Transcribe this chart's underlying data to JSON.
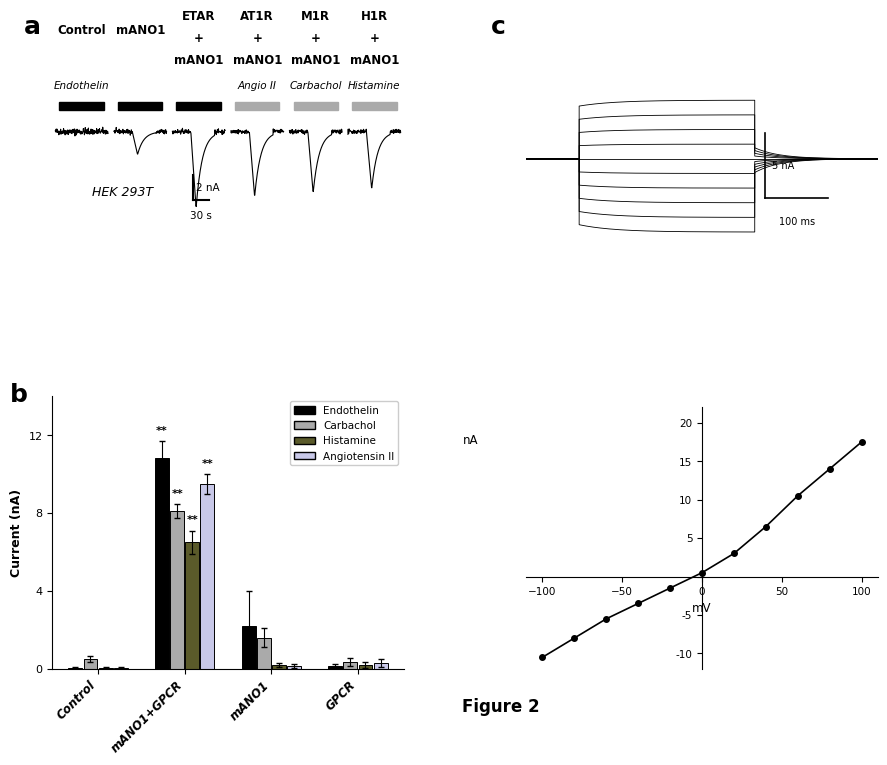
{
  "panel_a": {
    "columns": [
      {
        "label": "Control",
        "subtitle": "Endothelin",
        "bar_color": "black",
        "trace_depth": 0.05,
        "has_dip": false
      },
      {
        "label": "mANO1",
        "subtitle": "",
        "bar_color": "black",
        "trace_depth": 0.3,
        "has_dip": true
      },
      {
        "label": "ETAR\n+\nmANO1",
        "subtitle": "",
        "bar_color": "black",
        "trace_depth": 1.0,
        "has_dip": true
      },
      {
        "label": "AT1R\n+\nmANO1",
        "subtitle": "Angio II",
        "bar_color": "#aaaaaa",
        "trace_depth": 0.85,
        "has_dip": true
      },
      {
        "label": "M1R\n+\nmANO1",
        "subtitle": "Carbachol",
        "bar_color": "#aaaaaa",
        "trace_depth": 0.8,
        "has_dip": true
      },
      {
        "label": "H1R\n+\nmANO1",
        "subtitle": "Histamine",
        "bar_color": "#aaaaaa",
        "trace_depth": 0.75,
        "has_dip": true
      }
    ],
    "scalebar_label_y": "2 nA",
    "scalebar_label_x": "30 s",
    "hek_label": "HEK 293T"
  },
  "panel_b": {
    "groups": [
      "Control",
      "mANO1+GPCR",
      "mANO1",
      "GPCR"
    ],
    "series": [
      {
        "name": "Endothelin",
        "color": "#000000",
        "values": [
          0.05,
          10.8,
          2.2,
          0.15
        ],
        "errors": [
          0.05,
          0.9,
          1.8,
          0.1
        ]
      },
      {
        "name": "Carbachol",
        "color": "#aaaaaa",
        "values": [
          0.5,
          8.1,
          1.6,
          0.35
        ],
        "errors": [
          0.15,
          0.35,
          0.5,
          0.2
        ]
      },
      {
        "name": "Histamine",
        "color": "#5a5a2a",
        "values": [
          0.05,
          6.5,
          0.2,
          0.2
        ],
        "errors": [
          0.05,
          0.6,
          0.1,
          0.15
        ]
      },
      {
        "name": "Angiotensin II",
        "color": "#c8c8e8",
        "values": [
          0.05,
          9.5,
          0.15,
          0.3
        ],
        "errors": [
          0.05,
          0.5,
          0.1,
          0.2
        ]
      }
    ],
    "ylabel": "Current (nA)",
    "ylim": [
      0,
      14
    ],
    "yticks": [
      0,
      4,
      8,
      12
    ],
    "sig_labels": [
      "**",
      "**",
      "**",
      "**"
    ]
  },
  "panel_c": {
    "n_traces": 10,
    "scalebar_y": "5 nA",
    "scalebar_x": "100 ms",
    "iv_xlabel": "mV",
    "iv_ylabel": "nA",
    "iv_x": [
      -100,
      -80,
      -60,
      -40,
      -20,
      0,
      20,
      40,
      60,
      80,
      100
    ],
    "iv_y": [
      -10.5,
      -8.0,
      -5.5,
      -3.5,
      -1.5,
      0.5,
      3.0,
      6.5,
      10.5,
      14.0,
      17.5
    ],
    "iv_xlim": [
      -110,
      110
    ],
    "iv_ylim": [
      -12,
      22
    ],
    "iv_yticks": [
      -10,
      -5,
      0,
      5,
      10,
      15,
      20
    ],
    "iv_xticks": [
      -100,
      -50,
      0,
      50,
      100
    ]
  },
  "figure_label": "Figure 2",
  "bg_color": "#ffffff"
}
